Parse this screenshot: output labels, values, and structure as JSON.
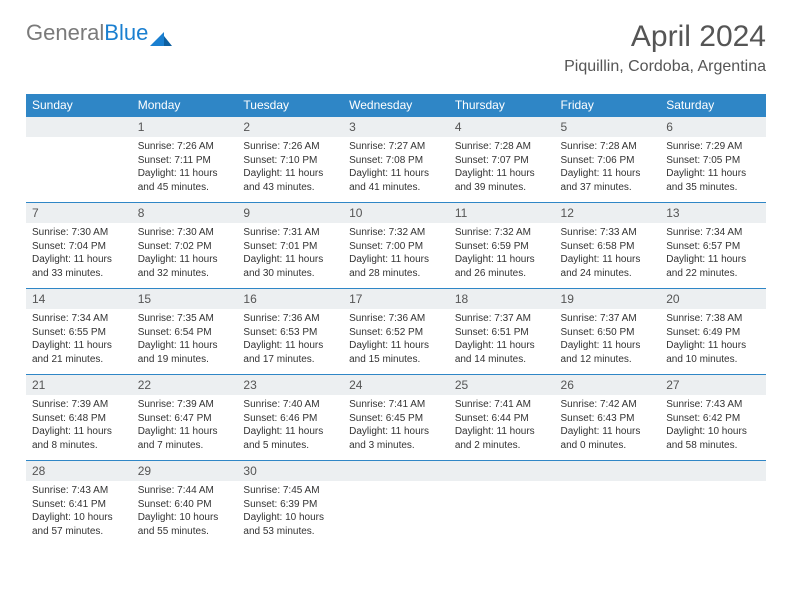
{
  "brand": {
    "part1": "General",
    "part2": "Blue"
  },
  "title": {
    "month": "April 2024",
    "location": "Piquillin, Cordoba, Argentina"
  },
  "colors": {
    "header_bg": "#2f86c6",
    "header_text": "#ffffff",
    "numrow_bg": "#eceff1",
    "border": "#2f86c6",
    "body_text": "#333333",
    "title_text": "#555555",
    "logo_gray": "#7a7a7a",
    "logo_blue": "#1a7fd0"
  },
  "typography": {
    "month_fontsize": 30,
    "location_fontsize": 16,
    "dayhead_fontsize": 12,
    "daynum_fontsize": 12,
    "cell_fontsize": 10
  },
  "weekdays": [
    "Sunday",
    "Monday",
    "Tuesday",
    "Wednesday",
    "Thursday",
    "Friday",
    "Saturday"
  ],
  "weeks": [
    {
      "nums": [
        "",
        "1",
        "2",
        "3",
        "4",
        "5",
        "6"
      ],
      "cells": [
        "",
        "Sunrise: 7:26 AM\nSunset: 7:11 PM\nDaylight: 11 hours and 45 minutes.",
        "Sunrise: 7:26 AM\nSunset: 7:10 PM\nDaylight: 11 hours and 43 minutes.",
        "Sunrise: 7:27 AM\nSunset: 7:08 PM\nDaylight: 11 hours and 41 minutes.",
        "Sunrise: 7:28 AM\nSunset: 7:07 PM\nDaylight: 11 hours and 39 minutes.",
        "Sunrise: 7:28 AM\nSunset: 7:06 PM\nDaylight: 11 hours and 37 minutes.",
        "Sunrise: 7:29 AM\nSunset: 7:05 PM\nDaylight: 11 hours and 35 minutes."
      ]
    },
    {
      "nums": [
        "7",
        "8",
        "9",
        "10",
        "11",
        "12",
        "13"
      ],
      "cells": [
        "Sunrise: 7:30 AM\nSunset: 7:04 PM\nDaylight: 11 hours and 33 minutes.",
        "Sunrise: 7:30 AM\nSunset: 7:02 PM\nDaylight: 11 hours and 32 minutes.",
        "Sunrise: 7:31 AM\nSunset: 7:01 PM\nDaylight: 11 hours and 30 minutes.",
        "Sunrise: 7:32 AM\nSunset: 7:00 PM\nDaylight: 11 hours and 28 minutes.",
        "Sunrise: 7:32 AM\nSunset: 6:59 PM\nDaylight: 11 hours and 26 minutes.",
        "Sunrise: 7:33 AM\nSunset: 6:58 PM\nDaylight: 11 hours and 24 minutes.",
        "Sunrise: 7:34 AM\nSunset: 6:57 PM\nDaylight: 11 hours and 22 minutes."
      ]
    },
    {
      "nums": [
        "14",
        "15",
        "16",
        "17",
        "18",
        "19",
        "20"
      ],
      "cells": [
        "Sunrise: 7:34 AM\nSunset: 6:55 PM\nDaylight: 11 hours and 21 minutes.",
        "Sunrise: 7:35 AM\nSunset: 6:54 PM\nDaylight: 11 hours and 19 minutes.",
        "Sunrise: 7:36 AM\nSunset: 6:53 PM\nDaylight: 11 hours and 17 minutes.",
        "Sunrise: 7:36 AM\nSunset: 6:52 PM\nDaylight: 11 hours and 15 minutes.",
        "Sunrise: 7:37 AM\nSunset: 6:51 PM\nDaylight: 11 hours and 14 minutes.",
        "Sunrise: 7:37 AM\nSunset: 6:50 PM\nDaylight: 11 hours and 12 minutes.",
        "Sunrise: 7:38 AM\nSunset: 6:49 PM\nDaylight: 11 hours and 10 minutes."
      ]
    },
    {
      "nums": [
        "21",
        "22",
        "23",
        "24",
        "25",
        "26",
        "27"
      ],
      "cells": [
        "Sunrise: 7:39 AM\nSunset: 6:48 PM\nDaylight: 11 hours and 8 minutes.",
        "Sunrise: 7:39 AM\nSunset: 6:47 PM\nDaylight: 11 hours and 7 minutes.",
        "Sunrise: 7:40 AM\nSunset: 6:46 PM\nDaylight: 11 hours and 5 minutes.",
        "Sunrise: 7:41 AM\nSunset: 6:45 PM\nDaylight: 11 hours and 3 minutes.",
        "Sunrise: 7:41 AM\nSunset: 6:44 PM\nDaylight: 11 hours and 2 minutes.",
        "Sunrise: 7:42 AM\nSunset: 6:43 PM\nDaylight: 11 hours and 0 minutes.",
        "Sunrise: 7:43 AM\nSunset: 6:42 PM\nDaylight: 10 hours and 58 minutes."
      ]
    },
    {
      "nums": [
        "28",
        "29",
        "30",
        "",
        "",
        "",
        ""
      ],
      "cells": [
        "Sunrise: 7:43 AM\nSunset: 6:41 PM\nDaylight: 10 hours and 57 minutes.",
        "Sunrise: 7:44 AM\nSunset: 6:40 PM\nDaylight: 10 hours and 55 minutes.",
        "Sunrise: 7:45 AM\nSunset: 6:39 PM\nDaylight: 10 hours and 53 minutes.",
        "",
        "",
        "",
        ""
      ]
    }
  ]
}
